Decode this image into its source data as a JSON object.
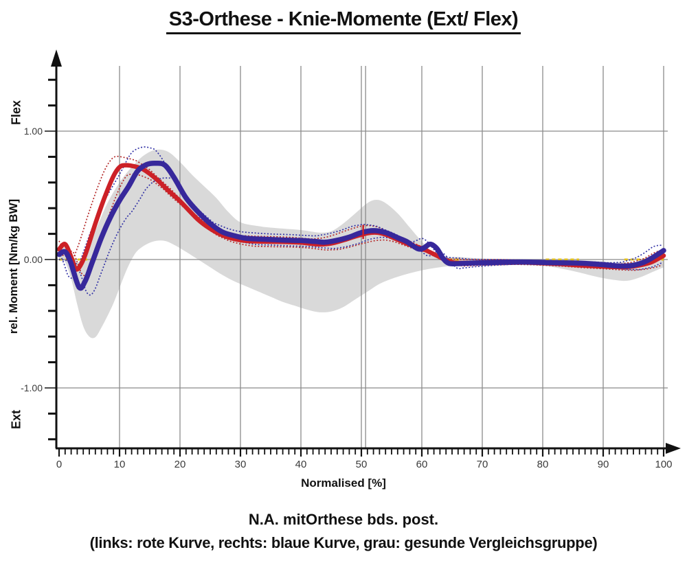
{
  "title": "S3-Orthese - Knie-Momente (Ext/ Flex)",
  "axes": {
    "y_label": "rel. Moment [Nm/kg BW]",
    "y_direction_top": "Flex",
    "y_direction_bottom": "Ext",
    "x_label": "Normalised [%]",
    "y_ticks": [
      {
        "value": 1,
        "label": "1.00"
      },
      {
        "value": 0,
        "label": "0.00"
      },
      {
        "value": -1,
        "label": "-1.00"
      }
    ],
    "y_minor_tick_step": 0.2,
    "x_ticks": [
      0,
      10,
      20,
      30,
      40,
      50,
      60,
      70,
      80,
      90,
      100
    ],
    "x_minor_tick_step": 1,
    "x_range": [
      0,
      100
    ],
    "y_range": [
      -1.47,
      1.51
    ],
    "grid": true
  },
  "caption": {
    "line1": "N.A. mitOrthese bds. post.",
    "line2": "(links: rote Kurve, rechts: blaue Kurve, grau: gesunde Vergleichsgruppe)"
  },
  "colors": {
    "red_curve": "#cc2127",
    "red_dotted": "#b52a2a",
    "blue_curve": "#37289b",
    "blue_dotted": "#3333a6",
    "norm_band": "#d9d9d9",
    "grid": "#8a8a8a",
    "axis": "#111111",
    "zero_dash": "#e3c01c",
    "event_marker": "#cc2127"
  },
  "chart_data": {
    "type": "line",
    "title": "S3-Orthese - Knie-Momente (Ext/ Flex)",
    "xlabel": "Normalised [%]",
    "ylabel": "rel. Moment [Nm/kg BW]",
    "xlim": [
      0,
      100
    ],
    "ylim": [
      -1.47,
      1.51
    ],
    "legend_position": "caption-below",
    "band": {
      "name": "gesunde Vergleichsgruppe (grau)",
      "upper": [
        [
          0,
          0.1
        ],
        [
          1,
          0.11
        ],
        [
          2,
          0.04
        ],
        [
          3.5,
          -0.02
        ],
        [
          5,
          0.12
        ],
        [
          6.5,
          0.28
        ],
        [
          8,
          0.44
        ],
        [
          10,
          0.6
        ],
        [
          12,
          0.72
        ],
        [
          14,
          0.81
        ],
        [
          16,
          0.855
        ],
        [
          18,
          0.84
        ],
        [
          20,
          0.76
        ],
        [
          22,
          0.66
        ],
        [
          24,
          0.57
        ],
        [
          26,
          0.48
        ],
        [
          28,
          0.37
        ],
        [
          30,
          0.29
        ],
        [
          33,
          0.26
        ],
        [
          36,
          0.245
        ],
        [
          40,
          0.23
        ],
        [
          43,
          0.21
        ],
        [
          45,
          0.22
        ],
        [
          47,
          0.28
        ],
        [
          49,
          0.36
        ],
        [
          51,
          0.44
        ],
        [
          52.5,
          0.465
        ],
        [
          54,
          0.44
        ],
        [
          56,
          0.36
        ],
        [
          58,
          0.25
        ],
        [
          60,
          0.14
        ],
        [
          62,
          0.05
        ],
        [
          64,
          0.02
        ],
        [
          66,
          0.02
        ],
        [
          69,
          0.01
        ],
        [
          72,
          0.005
        ],
        [
          76,
          0.003
        ],
        [
          80,
          0.0
        ],
        [
          84,
          -0.003
        ],
        [
          88,
          -0.01
        ],
        [
          92,
          -0.02
        ],
        [
          96,
          -0.02
        ],
        [
          100,
          -0.005
        ]
      ],
      "lower": [
        [
          0,
          0.01
        ],
        [
          1,
          -0.02
        ],
        [
          2,
          -0.15
        ],
        [
          3,
          -0.35
        ],
        [
          4,
          -0.52
        ],
        [
          5,
          -0.6
        ],
        [
          6,
          -0.605
        ],
        [
          7,
          -0.53
        ],
        [
          8,
          -0.44
        ],
        [
          9,
          -0.34
        ],
        [
          10,
          -0.22
        ],
        [
          11,
          -0.1
        ],
        [
          12,
          0.0
        ],
        [
          13,
          0.07
        ],
        [
          14.5,
          0.12
        ],
        [
          16,
          0.145
        ],
        [
          17.5,
          0.145
        ],
        [
          19,
          0.115
        ],
        [
          21,
          0.06
        ],
        [
          23,
          0.0
        ],
        [
          25,
          -0.06
        ],
        [
          27,
          -0.12
        ],
        [
          29,
          -0.17
        ],
        [
          31,
          -0.21
        ],
        [
          33,
          -0.25
        ],
        [
          35,
          -0.29
        ],
        [
          37,
          -0.33
        ],
        [
          39,
          -0.36
        ],
        [
          41,
          -0.39
        ],
        [
          43,
          -0.41
        ],
        [
          45,
          -0.405
        ],
        [
          47,
          -0.37
        ],
        [
          49,
          -0.31
        ],
        [
          51,
          -0.25
        ],
        [
          53,
          -0.19
        ],
        [
          55,
          -0.15
        ],
        [
          57,
          -0.12
        ],
        [
          59,
          -0.095
        ],
        [
          61,
          -0.075
        ],
        [
          63,
          -0.06
        ],
        [
          65,
          -0.05
        ],
        [
          68,
          -0.045
        ],
        [
          72,
          -0.04
        ],
        [
          76,
          -0.042
        ],
        [
          80,
          -0.05
        ],
        [
          83,
          -0.07
        ],
        [
          86,
          -0.1
        ],
        [
          89,
          -0.135
        ],
        [
          92,
          -0.16
        ],
        [
          94,
          -0.165
        ],
        [
          96,
          -0.14
        ],
        [
          98,
          -0.1
        ],
        [
          100,
          -0.06
        ]
      ]
    },
    "series": [
      {
        "name": "links (rote Kurve)",
        "color_key": "red_curve",
        "dotted_color_key": "red_dotted",
        "width": 6.5,
        "sd_shift": 1.2,
        "points": [
          [
            0,
            0.08
          ],
          [
            1,
            0.12
          ],
          [
            2,
            0.02
          ],
          [
            2.8,
            -0.075
          ],
          [
            3.6,
            -0.04
          ],
          [
            4.5,
            0.06
          ],
          [
            6,
            0.28
          ],
          [
            7.5,
            0.48
          ],
          [
            9,
            0.65
          ],
          [
            10,
            0.72
          ],
          [
            11,
            0.735
          ],
          [
            12.5,
            0.725
          ],
          [
            14,
            0.7
          ],
          [
            16,
            0.63
          ],
          [
            18,
            0.54
          ],
          [
            20,
            0.455
          ],
          [
            23,
            0.31
          ],
          [
            25,
            0.24
          ],
          [
            27,
            0.19
          ],
          [
            29,
            0.16
          ],
          [
            31,
            0.145
          ],
          [
            34,
            0.14
          ],
          [
            37,
            0.138
          ],
          [
            40,
            0.132
          ],
          [
            43,
            0.118
          ],
          [
            45,
            0.125
          ],
          [
            47,
            0.15
          ],
          [
            49,
            0.18
          ],
          [
            51,
            0.205
          ],
          [
            52.5,
            0.21
          ],
          [
            54,
            0.195
          ],
          [
            56,
            0.155
          ],
          [
            58,
            0.115
          ],
          [
            59.5,
            0.095
          ],
          [
            61,
            0.065
          ],
          [
            62.5,
            0.03
          ],
          [
            64,
            -0.005
          ],
          [
            65.5,
            -0.025
          ],
          [
            68,
            -0.025
          ],
          [
            71,
            -0.022
          ],
          [
            74,
            -0.02
          ],
          [
            77,
            -0.022
          ],
          [
            80,
            -0.028
          ],
          [
            83,
            -0.035
          ],
          [
            86,
            -0.045
          ],
          [
            89,
            -0.052
          ],
          [
            92,
            -0.058
          ],
          [
            94,
            -0.058
          ],
          [
            96,
            -0.045
          ],
          [
            98,
            -0.02
          ],
          [
            100,
            0.03
          ]
        ],
        "sd": [
          [
            0,
            0.045
          ],
          [
            2,
            0.05
          ],
          [
            3,
            0.06
          ],
          [
            5,
            0.07
          ],
          [
            7,
            0.078
          ],
          [
            9,
            0.072
          ],
          [
            11,
            0.065
          ],
          [
            13,
            0.07
          ],
          [
            15,
            0.078
          ],
          [
            18,
            0.08
          ],
          [
            21,
            0.072
          ],
          [
            24,
            0.06
          ],
          [
            27,
            0.05
          ],
          [
            30,
            0.042
          ],
          [
            35,
            0.04
          ],
          [
            40,
            0.04
          ],
          [
            45,
            0.045
          ],
          [
            50,
            0.055
          ],
          [
            53,
            0.058
          ],
          [
            56,
            0.05
          ],
          [
            59,
            0.04
          ],
          [
            62,
            0.032
          ],
          [
            65,
            0.028
          ],
          [
            70,
            0.02
          ],
          [
            75,
            0.018
          ],
          [
            80,
            0.018
          ],
          [
            85,
            0.02
          ],
          [
            90,
            0.02
          ],
          [
            95,
            0.025
          ],
          [
            100,
            0.035
          ]
        ]
      },
      {
        "name": "rechts (blaue Kurve)",
        "color_key": "blue_curve",
        "dotted_color_key": "blue_dotted",
        "width": 7.5,
        "sd_shift": 1.5,
        "points": [
          [
            0,
            0.04
          ],
          [
            1,
            0.06
          ],
          [
            1.9,
            -0.02
          ],
          [
            3.3,
            -0.215
          ],
          [
            4.3,
            -0.17
          ],
          [
            5.5,
            -0.02
          ],
          [
            7,
            0.17
          ],
          [
            8.5,
            0.33
          ],
          [
            10,
            0.46
          ],
          [
            11.5,
            0.57
          ],
          [
            13,
            0.69
          ],
          [
            14.5,
            0.74
          ],
          [
            16,
            0.75
          ],
          [
            17.5,
            0.735
          ],
          [
            19,
            0.64
          ],
          [
            21,
            0.48
          ],
          [
            23,
            0.37
          ],
          [
            25,
            0.28
          ],
          [
            27,
            0.215
          ],
          [
            29,
            0.185
          ],
          [
            31,
            0.165
          ],
          [
            34,
            0.158
          ],
          [
            37,
            0.152
          ],
          [
            40,
            0.148
          ],
          [
            42.5,
            0.14
          ],
          [
            44,
            0.135
          ],
          [
            46,
            0.15
          ],
          [
            48,
            0.175
          ],
          [
            50,
            0.21
          ],
          [
            52,
            0.225
          ],
          [
            54,
            0.21
          ],
          [
            56,
            0.17
          ],
          [
            57.5,
            0.14
          ],
          [
            59.3,
            0.085
          ],
          [
            60.3,
            0.09
          ],
          [
            61.4,
            0.12
          ],
          [
            62.5,
            0.085
          ],
          [
            63.5,
            0.01
          ],
          [
            64.5,
            -0.03
          ],
          [
            66,
            -0.032
          ],
          [
            68,
            -0.028
          ],
          [
            71,
            -0.024
          ],
          [
            74,
            -0.02
          ],
          [
            78,
            -0.02
          ],
          [
            81,
            -0.024
          ],
          [
            84,
            -0.026
          ],
          [
            87,
            -0.03
          ],
          [
            90,
            -0.04
          ],
          [
            92.5,
            -0.05
          ],
          [
            94.5,
            -0.048
          ],
          [
            96.5,
            -0.025
          ],
          [
            98,
            0.01
          ],
          [
            100,
            0.07
          ]
        ],
        "sd": [
          [
            0,
            0.04
          ],
          [
            2,
            0.05
          ],
          [
            3.5,
            0.07
          ],
          [
            5,
            0.08
          ],
          [
            7,
            0.08
          ],
          [
            9,
            0.085
          ],
          [
            11,
            0.1
          ],
          [
            12,
            0.125
          ],
          [
            14,
            0.13
          ],
          [
            16,
            0.12
          ],
          [
            18,
            0.11
          ],
          [
            20,
            0.1
          ],
          [
            22,
            0.095
          ],
          [
            24,
            0.085
          ],
          [
            26,
            0.07
          ],
          [
            28,
            0.06
          ],
          [
            31,
            0.05
          ],
          [
            35,
            0.046
          ],
          [
            40,
            0.046
          ],
          [
            44,
            0.05
          ],
          [
            48,
            0.05
          ],
          [
            52,
            0.05
          ],
          [
            55,
            0.05
          ],
          [
            58,
            0.05
          ],
          [
            60,
            0.048
          ],
          [
            62.3,
            0.065
          ],
          [
            64,
            0.05
          ],
          [
            66,
            0.04
          ],
          [
            68,
            0.028
          ],
          [
            72,
            0.02
          ],
          [
            76,
            0.016
          ],
          [
            80,
            0.016
          ],
          [
            84,
            0.016
          ],
          [
            88,
            0.02
          ],
          [
            92,
            0.026
          ],
          [
            96,
            0.03
          ],
          [
            100,
            0.042
          ]
        ]
      }
    ],
    "zero_dash_segments": [
      [
        0,
        5.5
      ],
      [
        63.5,
        66.2
      ],
      [
        80.5,
        86
      ],
      [
        93.5,
        100
      ]
    ],
    "event_grid_line_x": 50.7,
    "event_marker": {
      "x": 50.3,
      "y1": 0.16,
      "y2": 0.27
    }
  }
}
